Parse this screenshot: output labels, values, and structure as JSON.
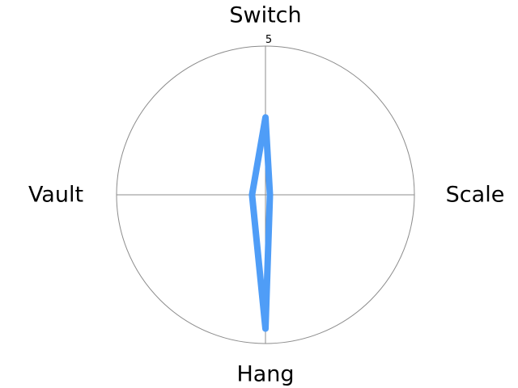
{
  "chart_data": {
    "type": "radar",
    "title": "",
    "categories": [
      "Switch",
      "Scale",
      "Hang",
      "Vault"
    ],
    "rmax": 5,
    "radial_ticks": [
      "5"
    ],
    "grid": true,
    "legend": "none",
    "series": [
      {
        "values": [
          2.6,
          0.15,
          4.5,
          0.45
        ],
        "color": "#4f9df7"
      }
    ]
  }
}
